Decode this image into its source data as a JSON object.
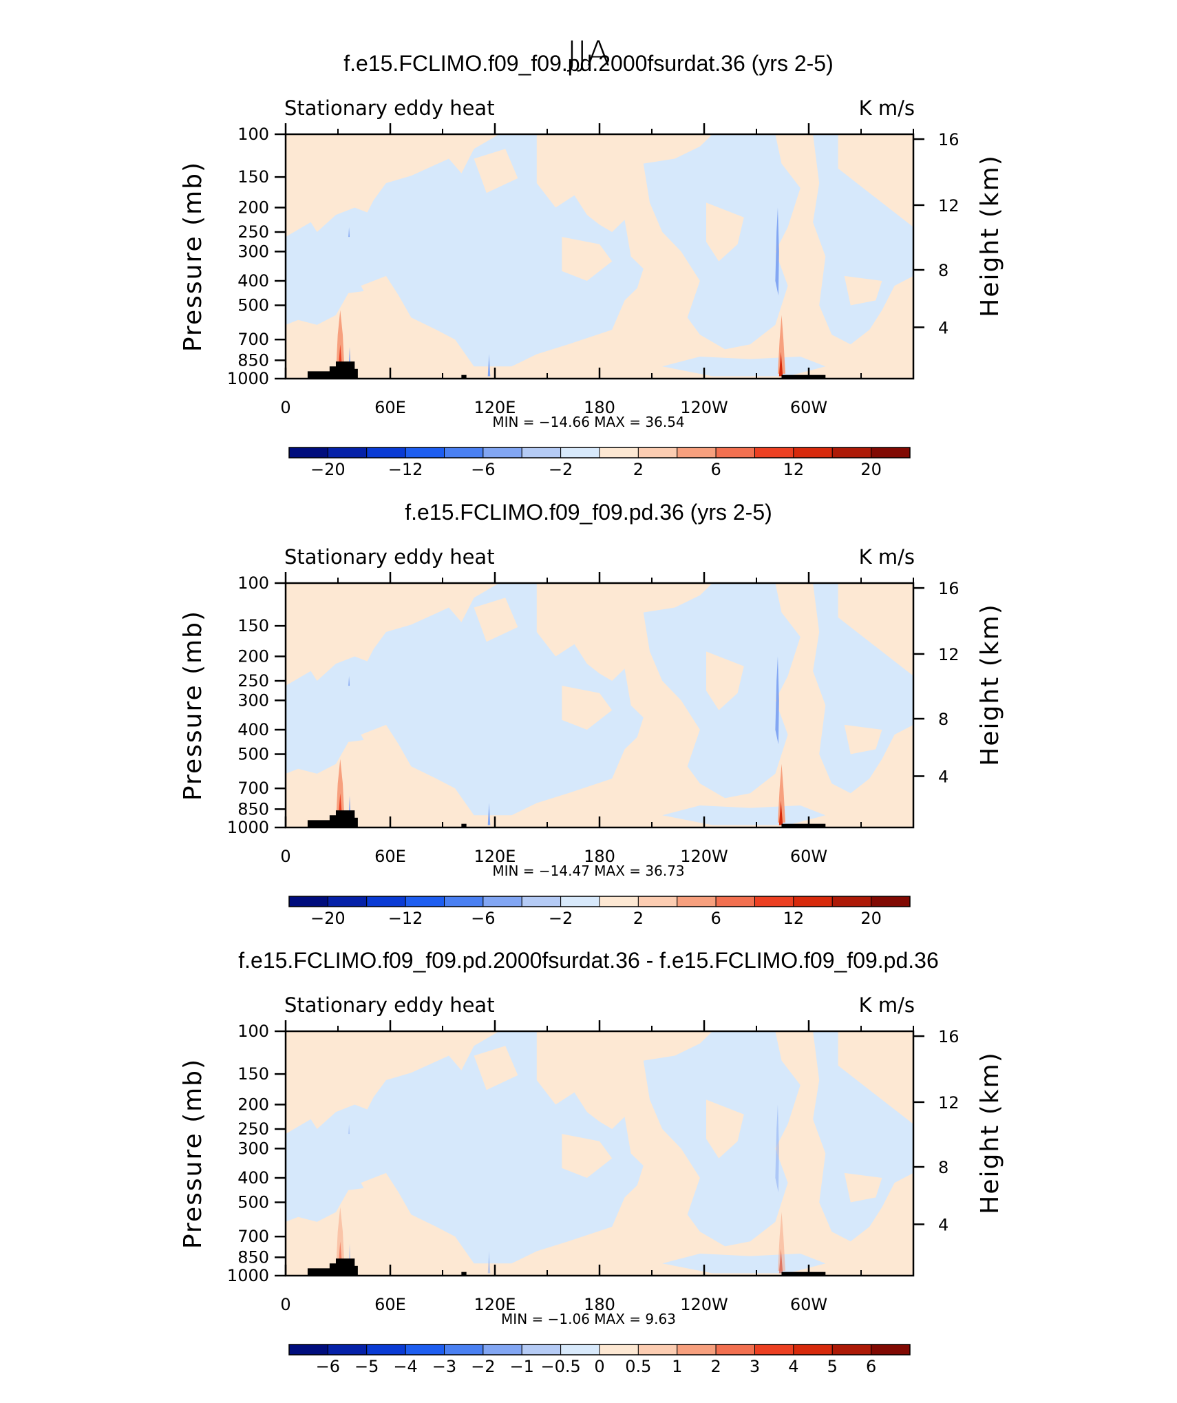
{
  "page_title": "JJA",
  "chart_data": [
    {
      "type": "heatmap",
      "title": "f.e15.FCLIMO.f09_f09.pd.2000fsurdat.36 (yrs 2-5)",
      "left_string": "Stationary eddy heat",
      "right_string": "K m/s",
      "ylabel": "Pressure (mb)",
      "ylabel_right": "Height (km)",
      "x_ticks": [
        "0",
        "60E",
        "120E",
        "180",
        "120W",
        "60W"
      ],
      "y_ticks": [
        "100",
        "150",
        "200",
        "250",
        "300",
        "400",
        "500",
        "700",
        "850",
        "1000"
      ],
      "y_ticks_right": [
        "16",
        "12",
        "8",
        "4"
      ],
      "stats": "MIN =  −14.66   MAX =   36.54",
      "colorbar_labels": [
        "−20",
        "−12",
        "−6",
        "−2",
        "2",
        "6",
        "12",
        "20"
      ],
      "colorbar_colors": [
        "#000d7d",
        "#0521a8",
        "#0a3bd4",
        "#1e5ef0",
        "#4a80f2",
        "#82a6f3",
        "#b5cbf5",
        "#d8e9fb",
        "#fde8d3",
        "#fccdb2",
        "#f7a07e",
        "#f27050",
        "#ec4022",
        "#d72a0c",
        "#ad1a07",
        "#810a03"
      ],
      "min": -14.66,
      "max": 36.54
    },
    {
      "type": "heatmap",
      "title": "f.e15.FCLIMO.f09_f09.pd.36 (yrs 2-5)",
      "left_string": "Stationary eddy heat",
      "right_string": "K m/s",
      "ylabel": "Pressure (mb)",
      "ylabel_right": "Height (km)",
      "x_ticks": [
        "0",
        "60E",
        "120E",
        "180",
        "120W",
        "60W"
      ],
      "y_ticks": [
        "100",
        "150",
        "200",
        "250",
        "300",
        "400",
        "500",
        "700",
        "850",
        "1000"
      ],
      "y_ticks_right": [
        "16",
        "12",
        "8",
        "4"
      ],
      "stats": "MIN =  −14.47   MAX =   36.73",
      "colorbar_labels": [
        "−20",
        "−12",
        "−6",
        "−2",
        "2",
        "6",
        "12",
        "20"
      ],
      "colorbar_colors": [
        "#000d7d",
        "#0521a8",
        "#0a3bd4",
        "#1e5ef0",
        "#4a80f2",
        "#82a6f3",
        "#b5cbf5",
        "#d8e9fb",
        "#fde8d3",
        "#fccdb2",
        "#f7a07e",
        "#f27050",
        "#ec4022",
        "#d72a0c",
        "#ad1a07",
        "#810a03"
      ],
      "min": -14.47,
      "max": 36.73
    },
    {
      "type": "heatmap",
      "title": "f.e15.FCLIMO.f09_f09.pd.2000fsurdat.36 - f.e15.FCLIMO.f09_f09.pd.36",
      "left_string": "Stationary eddy heat",
      "right_string": "K m/s",
      "ylabel": "Pressure (mb)",
      "ylabel_right": "Height (km)",
      "x_ticks": [
        "0",
        "60E",
        "120E",
        "180",
        "120W",
        "60W"
      ],
      "y_ticks": [
        "100",
        "150",
        "200",
        "250",
        "300",
        "400",
        "500",
        "700",
        "850",
        "1000"
      ],
      "y_ticks_right": [
        "16",
        "12",
        "8",
        "4"
      ],
      "stats": "MIN =   −1.06   MAX =   9.63",
      "colorbar_labels": [
        "−6",
        "−5",
        "−4",
        "−3",
        "−2",
        "−1",
        "−0.5",
        "0",
        "0.5",
        "1",
        "2",
        "3",
        "4",
        "5",
        "6"
      ],
      "colorbar_colors": [
        "#000d7d",
        "#0521a8",
        "#0a3bd4",
        "#1e5ef0",
        "#4a80f2",
        "#82a6f3",
        "#b5cbf5",
        "#d8e9fb",
        "#fde8d3",
        "#fccdb2",
        "#f7a07e",
        "#f27050",
        "#ec4022",
        "#d72a0c",
        "#ad1a07",
        "#810a03"
      ],
      "min": -1.06,
      "max": 9.63
    }
  ]
}
